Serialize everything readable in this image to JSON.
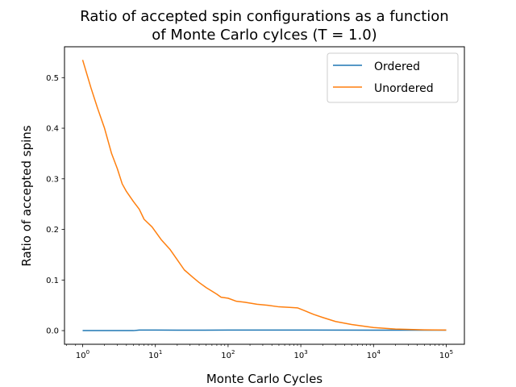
{
  "chart_data": {
    "type": "line",
    "title_line1": "Ratio of accepted spin configurations as a function",
    "title_line2": "of Monte Carlo cylces (T = 1.0)",
    "xlabel": "Monte Carlo Cycles",
    "ylabel": "Ratio of accepted spins",
    "xscale": "log",
    "xlim": [
      1,
      100000
    ],
    "ylim": [
      -0.027,
      0.561
    ],
    "grid": false,
    "legend_position": "top-right",
    "x_ticks": [
      {
        "value": 1,
        "base": "10",
        "exp": "0"
      },
      {
        "value": 10,
        "base": "10",
        "exp": "1"
      },
      {
        "value": 100,
        "base": "10",
        "exp": "2"
      },
      {
        "value": 1000,
        "base": "10",
        "exp": "3"
      },
      {
        "value": 10000,
        "base": "10",
        "exp": "4"
      },
      {
        "value": 100000,
        "base": "10",
        "exp": "5"
      }
    ],
    "y_ticks": [
      {
        "value": 0.0,
        "label": "0.0"
      },
      {
        "value": 0.1,
        "label": "0.1"
      },
      {
        "value": 0.2,
        "label": "0.2"
      },
      {
        "value": 0.3,
        "label": "0.3"
      },
      {
        "value": 0.4,
        "label": "0.4"
      },
      {
        "value": 0.5,
        "label": "0.5"
      }
    ],
    "series": [
      {
        "name": "Ordered",
        "color": "#1f77b4",
        "points": [
          [
            1,
            0.0
          ],
          [
            5,
            0.0
          ],
          [
            6,
            0.001
          ],
          [
            10,
            0.001
          ],
          [
            20,
            0.0008
          ],
          [
            100,
            0.001
          ],
          [
            1000,
            0.001
          ],
          [
            10000,
            0.0009
          ],
          [
            100000,
            0.0008
          ]
        ]
      },
      {
        "name": "Unordered",
        "color": "#ff7f0e",
        "points": [
          [
            1,
            0.535
          ],
          [
            1.3,
            0.48
          ],
          [
            1.6,
            0.44
          ],
          [
            2,
            0.4
          ],
          [
            2.5,
            0.35
          ],
          [
            3,
            0.32
          ],
          [
            3.5,
            0.29
          ],
          [
            4,
            0.275
          ],
          [
            5,
            0.255
          ],
          [
            6,
            0.24
          ],
          [
            7,
            0.22
          ],
          [
            9,
            0.205
          ],
          [
            12,
            0.18
          ],
          [
            16,
            0.16
          ],
          [
            20,
            0.14
          ],
          [
            25,
            0.12
          ],
          [
            33,
            0.105
          ],
          [
            40,
            0.095
          ],
          [
            50,
            0.085
          ],
          [
            60,
            0.078
          ],
          [
            70,
            0.072
          ],
          [
            80,
            0.066
          ],
          [
            100,
            0.064
          ],
          [
            130,
            0.058
          ],
          [
            170,
            0.056
          ],
          [
            250,
            0.052
          ],
          [
            350,
            0.05
          ],
          [
            500,
            0.047
          ],
          [
            700,
            0.046
          ],
          [
            900,
            0.045
          ],
          [
            1100,
            0.04
          ],
          [
            1500,
            0.032
          ],
          [
            2000,
            0.026
          ],
          [
            3000,
            0.018
          ],
          [
            5000,
            0.012
          ],
          [
            10000,
            0.006
          ],
          [
            20000,
            0.003
          ],
          [
            50000,
            0.0015
          ],
          [
            100000,
            0.001
          ]
        ]
      }
    ]
  }
}
